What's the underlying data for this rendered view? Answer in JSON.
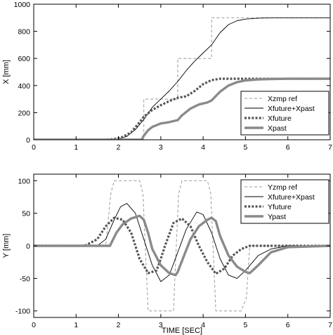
{
  "chart_data": [
    {
      "type": "line",
      "xlabel": "",
      "ylabel": "X [mm]",
      "xlim": [
        0,
        7
      ],
      "ylim": [
        0,
        1000
      ],
      "xticks": [
        "0",
        "1",
        "2",
        "3",
        "4",
        "5",
        "6",
        "7"
      ],
      "yticks": [
        "0",
        "200",
        "400",
        "600",
        "800",
        "1000"
      ],
      "grid": false,
      "legend_position": "bottom-right",
      "series": [
        {
          "name": "Xzmp ref",
          "style": "dashed-thin",
          "color": "#9a9a9a",
          "x": [
            0,
            2.6,
            2.6,
            3.4,
            3.4,
            4.2,
            4.2,
            7
          ],
          "y": [
            0,
            0,
            300,
            300,
            600,
            600,
            900,
            900
          ]
        },
        {
          "name": "Xfuture+Xpast",
          "style": "solid-thin",
          "color": "#000000",
          "x": [
            0,
            1.8,
            2.0,
            2.2,
            2.4,
            2.6,
            2.8,
            3.0,
            3.2,
            3.4,
            3.6,
            3.8,
            4.0,
            4.2,
            4.4,
            4.6,
            4.8,
            5.0,
            5.3,
            5.6,
            6.0,
            7.0
          ],
          "y": [
            0,
            0,
            5,
            25,
            75,
            150,
            240,
            300,
            360,
            430,
            510,
            580,
            640,
            700,
            790,
            850,
            878,
            890,
            897,
            900,
            900,
            900
          ]
        },
        {
          "name": "Xfuture",
          "style": "dotted-thick",
          "color": "#555555",
          "x": [
            0,
            1.7,
            1.9,
            2.1,
            2.3,
            2.5,
            2.6,
            2.8,
            3.0,
            3.2,
            3.4,
            3.6,
            3.8,
            4.0,
            4.2,
            4.4,
            7.0
          ],
          "y": [
            0,
            0,
            5,
            20,
            55,
            130,
            170,
            220,
            255,
            285,
            310,
            320,
            360,
            410,
            440,
            450,
            450
          ]
        },
        {
          "name": "Xpast",
          "style": "solid-thick",
          "color": "#8a8a8a",
          "x": [
            0,
            2.55,
            2.6,
            2.7,
            2.8,
            3.0,
            3.2,
            3.4,
            3.5,
            3.7,
            3.9,
            4.1,
            4.2,
            4.4,
            4.6,
            4.8,
            5.0,
            5.3,
            5.6,
            6.0,
            7.0
          ],
          "y": [
            0,
            0,
            30,
            70,
            95,
            120,
            130,
            145,
            180,
            230,
            260,
            275,
            290,
            355,
            400,
            425,
            438,
            445,
            448,
            450,
            450
          ]
        }
      ]
    },
    {
      "type": "line",
      "xlabel": "TIME [SEC]",
      "ylabel": "Y [mm]",
      "xlim": [
        0,
        7
      ],
      "ylim": [
        -110,
        110
      ],
      "xticks": [
        "0",
        "1",
        "2",
        "3",
        "4",
        "5",
        "6",
        "7"
      ],
      "yticks": [
        "-100",
        "-50",
        "0",
        "50",
        "100"
      ],
      "grid": false,
      "legend_position": "top-right",
      "series": [
        {
          "name": "Yzmp ref",
          "style": "dashed-thin",
          "color": "#9a9a9a",
          "x": [
            0,
            1.7,
            1.82,
            1.9,
            2.5,
            2.58,
            2.7,
            3.3,
            3.42,
            3.5,
            4.1,
            4.18,
            4.3,
            4.9,
            5.02,
            5.1,
            7.0
          ],
          "y": [
            0,
            0,
            80,
            100,
            100,
            80,
            -100,
            -100,
            80,
            100,
            100,
            80,
            -100,
            -100,
            -80,
            0,
            0
          ]
        },
        {
          "name": "Xfuture+Xpast",
          "style": "solid-thin",
          "color": "#000000",
          "x": [
            0,
            1.5,
            1.7,
            1.9,
            2.05,
            2.2,
            2.4,
            2.6,
            2.8,
            3.0,
            3.2,
            3.4,
            3.6,
            3.85,
            4.0,
            4.2,
            4.4,
            4.6,
            4.8,
            5.0,
            5.3,
            5.6,
            6.0,
            7.0
          ],
          "y": [
            0,
            0,
            10,
            40,
            60,
            65,
            50,
            10,
            -30,
            -55,
            -45,
            -10,
            25,
            52,
            48,
            20,
            -20,
            -45,
            -50,
            -38,
            -15,
            -5,
            0,
            0
          ]
        },
        {
          "name": "Yfuture",
          "style": "dotted-thick",
          "color": "#555555",
          "x": [
            0,
            1.2,
            1.5,
            1.7,
            1.9,
            2.1,
            2.3,
            2.5,
            2.7,
            2.9,
            3.0,
            3.1,
            3.3,
            3.5,
            3.7,
            3.9,
            4.1,
            4.3,
            4.5,
            4.7,
            4.9,
            5.1,
            7.0
          ],
          "y": [
            0,
            0,
            10,
            30,
            43,
            40,
            20,
            -20,
            -42,
            -38,
            -20,
            0,
            35,
            42,
            30,
            0,
            -25,
            -43,
            -35,
            -15,
            -5,
            0,
            0
          ]
        },
        {
          "name": "Ypast",
          "style": "solid-thick",
          "color": "#8a8a8a",
          "x": [
            0,
            1.8,
            1.95,
            2.1,
            2.3,
            2.5,
            2.6,
            2.7,
            2.8,
            3.0,
            3.2,
            3.35,
            3.4,
            3.55,
            3.7,
            3.9,
            4.1,
            4.2,
            4.3,
            4.4,
            4.6,
            4.8,
            5.0,
            5.1,
            5.3,
            5.6,
            6.0,
            7.0
          ],
          "y": [
            0,
            0,
            20,
            33,
            42,
            46,
            40,
            20,
            -5,
            -30,
            -42,
            -45,
            -40,
            -15,
            10,
            30,
            40,
            43,
            38,
            15,
            -15,
            -32,
            -40,
            -42,
            -30,
            -10,
            -2,
            0
          ]
        }
      ]
    }
  ]
}
